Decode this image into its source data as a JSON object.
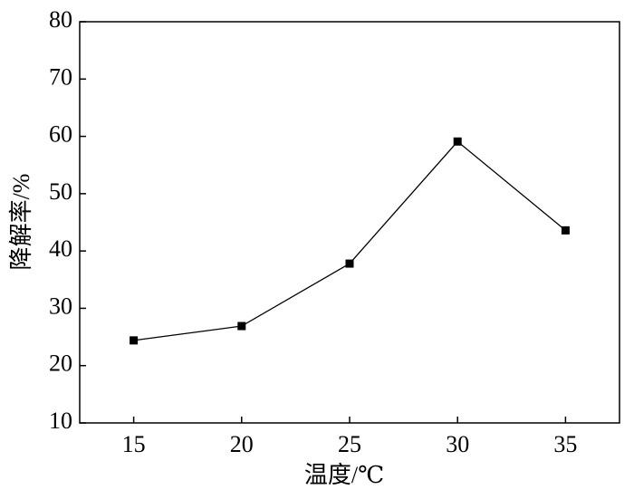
{
  "chart_data": {
    "type": "line",
    "x_label": "温度/℃",
    "y_label": "降解率/%",
    "x": [
      15,
      20,
      25,
      30,
      35
    ],
    "series": [
      {
        "color": "#000000",
        "values": [
          24.4,
          26.9,
          37.8,
          59.1,
          43.6
        ]
      }
    ],
    "xlim": [
      12.5,
      37.5
    ],
    "xticks": [
      15,
      20,
      25,
      30,
      35
    ],
    "ylim": [
      10,
      80
    ],
    "yticks": [
      10,
      20,
      30,
      40,
      50,
      60,
      70,
      80
    ]
  }
}
